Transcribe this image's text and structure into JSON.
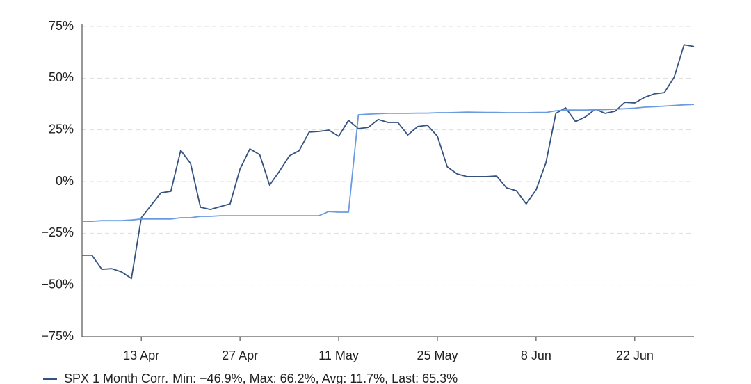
{
  "chart_data": {
    "type": "line",
    "categories": [
      null,
      null,
      null,
      null,
      null,
      null,
      "13 Apr",
      null,
      null,
      null,
      null,
      null,
      null,
      null,
      null,
      null,
      "27 Apr",
      null,
      null,
      null,
      null,
      null,
      null,
      null,
      null,
      null,
      "11 May",
      null,
      null,
      null,
      null,
      null,
      null,
      null,
      null,
      null,
      "25 May",
      null,
      null,
      null,
      null,
      null,
      null,
      null,
      null,
      null,
      "8 Jun",
      null,
      null,
      null,
      null,
      null,
      null,
      null,
      null,
      null,
      "22 Jun",
      null,
      null,
      null,
      null,
      null,
      null
    ],
    "series": [
      {
        "name": "SPX 1 Month Corr.",
        "color": "#34527f",
        "values": [
          -35.6,
          -35.6,
          -42.4,
          -42.1,
          -43.7,
          -46.9,
          -17.5,
          -11.4,
          -5.4,
          -4.7,
          15.1,
          8.7,
          -12.4,
          -13.5,
          -12.1,
          -10.8,
          6,
          15.8,
          13,
          -1.7,
          5,
          12.4,
          15,
          23.9,
          24.2,
          24.9,
          21.9,
          29.6,
          25.6,
          26.2,
          30,
          28.6,
          28.6,
          22.5,
          26.6,
          27.2,
          21.9,
          7.1,
          3.7,
          2.4,
          2.4,
          2.4,
          2.7,
          -3,
          -4.4,
          -10.8,
          -4,
          9.1,
          33,
          35.6,
          29,
          31.3,
          35,
          33,
          34,
          38.3,
          38,
          40.7,
          42.4,
          43,
          50.5,
          66.2,
          65.3
        ]
      },
      {
        "color": "#6a9be0",
        "values": [
          -19.2,
          -19.2,
          -18.9,
          -18.9,
          -18.9,
          -18.6,
          -18.1,
          -18.1,
          -18.1,
          -18.1,
          -17.5,
          -17.5,
          -16.8,
          -16.8,
          -16.5,
          -16.5,
          -16.5,
          -16.5,
          -16.5,
          -16.5,
          -16.5,
          -16.5,
          -16.5,
          -16.5,
          -16.5,
          -14.5,
          -14.8,
          -14.8,
          32.3,
          32.6,
          32.8,
          33,
          33,
          33,
          33.1,
          33.1,
          33.3,
          33.3,
          33.4,
          33.6,
          33.5,
          33.4,
          33.4,
          33.3,
          33.3,
          33.3,
          33.4,
          33.4,
          34.2,
          34.6,
          34.6,
          34.6,
          34.7,
          34.8,
          35,
          35.2,
          35.5,
          36,
          36.2,
          36.5,
          36.8,
          37.1,
          37.3
        ]
      }
    ],
    "legend_stats": "Min: −46.9%, Max: 66.2%, Avg: 11.7%, Last: 65.3%",
    "ylim": [
      -75,
      75
    ],
    "yticks": [
      {
        "value": -75,
        "label": "−75%"
      },
      {
        "value": -50,
        "label": "−50%"
      },
      {
        "value": -25,
        "label": "−25%"
      },
      {
        "value": 0,
        "label": "0%"
      },
      {
        "value": 25,
        "label": "25%"
      },
      {
        "value": 50,
        "label": "50%"
      },
      {
        "value": 75,
        "label": "75%"
      }
    ],
    "grid": true
  }
}
